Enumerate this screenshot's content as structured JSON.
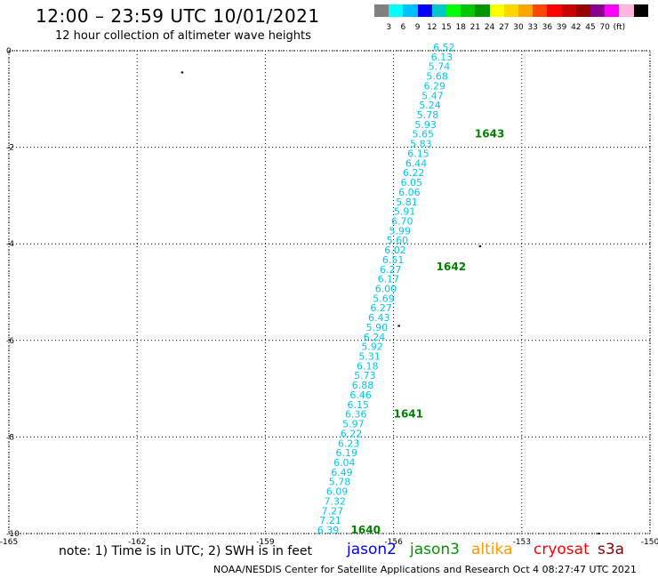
{
  "header": {
    "title": "12:00 – 23:59 UTC 10/01/2021",
    "subtitle": "12 hour collection of altimeter wave heights"
  },
  "colorbar": {
    "colors": [
      "#808080",
      "#00ffff",
      "#00bfff",
      "#0000ff",
      "#00c8c8",
      "#00ff00",
      "#00c800",
      "#009600",
      "#ffff00",
      "#ffd700",
      "#ffa500",
      "#ff4500",
      "#ff0000",
      "#c80000",
      "#960000",
      "#8b008b",
      "#ff00ff",
      "#ffb6e0",
      "#000000"
    ],
    "labels": [
      "3",
      "6",
      "9",
      "12",
      "15",
      "18",
      "21",
      "24",
      "27",
      "30",
      "33",
      "36",
      "39",
      "42",
      "45",
      "70",
      "(ft)"
    ]
  },
  "chart_data": {
    "type": "scatter",
    "xlim": [
      -165,
      -150
    ],
    "ylim": [
      -10,
      0
    ],
    "x_ticks": [
      "-165",
      "-162",
      "-159",
      "-156",
      "-153",
      "-150"
    ],
    "x_tick_values": [
      -165,
      -162,
      -159,
      -156,
      -153,
      -150
    ],
    "y_ticks": [
      "0",
      "-2",
      "-4",
      "-6",
      "-8",
      "-10"
    ],
    "y_tick_values": [
      0,
      -2,
      -4,
      -6,
      -8,
      -10
    ],
    "grid": true,
    "track_color": "#00c8e6",
    "time_color": "#008000",
    "swh_readings": [
      {
        "x": -154.82,
        "y": 0.0,
        "v": "6.52"
      },
      {
        "x": -154.87,
        "y": -0.2,
        "v": "6.13"
      },
      {
        "x": -154.93,
        "y": -0.4,
        "v": "5.74"
      },
      {
        "x": -154.98,
        "y": -0.6,
        "v": "5.68"
      },
      {
        "x": -155.04,
        "y": -0.8,
        "v": "6.29"
      },
      {
        "x": -155.09,
        "y": -1.0,
        "v": "5.47"
      },
      {
        "x": -155.15,
        "y": -1.2,
        "v": "5.24"
      },
      {
        "x": -155.2,
        "y": -1.4,
        "v": "5.78"
      },
      {
        "x": -155.25,
        "y": -1.6,
        "v": "5.93"
      },
      {
        "x": -155.31,
        "y": -1.8,
        "v": "5.65"
      },
      {
        "x": -155.36,
        "y": -2.0,
        "v": "5.83"
      },
      {
        "x": -155.42,
        "y": -2.2,
        "v": "6.15"
      },
      {
        "x": -155.47,
        "y": -2.4,
        "v": "6.44"
      },
      {
        "x": -155.53,
        "y": -2.6,
        "v": "6.22"
      },
      {
        "x": -155.58,
        "y": -2.8,
        "v": "6.05"
      },
      {
        "x": -155.63,
        "y": -3.0,
        "v": "6.06"
      },
      {
        "x": -155.69,
        "y": -3.2,
        "v": "5.81"
      },
      {
        "x": -155.74,
        "y": -3.4,
        "v": "5.91"
      },
      {
        "x": -155.8,
        "y": -3.6,
        "v": "6.70"
      },
      {
        "x": -155.85,
        "y": -3.8,
        "v": "5.99"
      },
      {
        "x": -155.91,
        "y": -4.0,
        "v": "5.60"
      },
      {
        "x": -155.96,
        "y": -4.2,
        "v": "6.02"
      },
      {
        "x": -156.01,
        "y": -4.4,
        "v": "6.51"
      },
      {
        "x": -156.07,
        "y": -4.6,
        "v": "6.27"
      },
      {
        "x": -156.12,
        "y": -4.8,
        "v": "6.17"
      },
      {
        "x": -156.18,
        "y": -5.0,
        "v": "6.00"
      },
      {
        "x": -156.23,
        "y": -5.2,
        "v": "5.69"
      },
      {
        "x": -156.29,
        "y": -5.4,
        "v": "6.27"
      },
      {
        "x": -156.34,
        "y": -5.6,
        "v": "6.43"
      },
      {
        "x": -156.39,
        "y": -5.8,
        "v": "5.90"
      },
      {
        "x": -156.45,
        "y": -6.0,
        "v": "6.24"
      },
      {
        "x": -156.5,
        "y": -6.2,
        "v": "5.92"
      },
      {
        "x": -156.56,
        "y": -6.4,
        "v": "5.31"
      },
      {
        "x": -156.61,
        "y": -6.6,
        "v": "6.18"
      },
      {
        "x": -156.67,
        "y": -6.8,
        "v": "5.73"
      },
      {
        "x": -156.72,
        "y": -7.0,
        "v": "6.88"
      },
      {
        "x": -156.77,
        "y": -7.2,
        "v": "6.46"
      },
      {
        "x": -156.83,
        "y": -7.4,
        "v": "6.15"
      },
      {
        "x": -156.88,
        "y": -7.6,
        "v": "6.36"
      },
      {
        "x": -156.94,
        "y": -7.8,
        "v": "5.97"
      },
      {
        "x": -156.99,
        "y": -8.0,
        "v": "6.22"
      },
      {
        "x": -157.05,
        "y": -8.2,
        "v": "6.23"
      },
      {
        "x": -157.1,
        "y": -8.4,
        "v": "6.19"
      },
      {
        "x": -157.15,
        "y": -8.6,
        "v": "6.04"
      },
      {
        "x": -157.21,
        "y": -8.8,
        "v": "6.49"
      },
      {
        "x": -157.26,
        "y": -9.0,
        "v": "5.78"
      },
      {
        "x": -157.32,
        "y": -9.2,
        "v": "6.09"
      },
      {
        "x": -157.37,
        "y": -9.4,
        "v": "7.32"
      },
      {
        "x": -157.43,
        "y": -9.6,
        "v": "7.27"
      },
      {
        "x": -157.48,
        "y": -9.8,
        "v": "7.21"
      },
      {
        "x": -157.53,
        "y": -10.0,
        "v": "6.39"
      }
    ],
    "time_labels": [
      {
        "x": -154.1,
        "y": -1.8,
        "t": "1643"
      },
      {
        "x": -155.0,
        "y": -4.55,
        "t": "1642"
      },
      {
        "x": -156.0,
        "y": -7.6,
        "t": "1641"
      },
      {
        "x": -157.0,
        "y": -10.0,
        "t": "1640"
      }
    ],
    "specks": [
      {
        "x": -160.95,
        "y": -0.45
      },
      {
        "x": -153.98,
        "y": -4.05
      },
      {
        "x": -155.88,
        "y": -5.7
      },
      {
        "x": -151.2,
        "y": -10.0
      }
    ]
  },
  "footer": {
    "note": "note:  1) Time is in UTC;  2) SWH is in feet",
    "satellites": [
      {
        "name": "jason2",
        "color": "#0000ff"
      },
      {
        "name": "jason3",
        "color": "#009600"
      },
      {
        "name": "altika",
        "color": "#ff9900"
      },
      {
        "name": "cryosat",
        "color": "#ff0000"
      },
      {
        "name": "s3a",
        "color": "#8b0000"
      }
    ],
    "credit": "NOAA/NESDIS Center for Satellite Applications and Research    Oct  4 08:27:47 UTC 2021"
  }
}
